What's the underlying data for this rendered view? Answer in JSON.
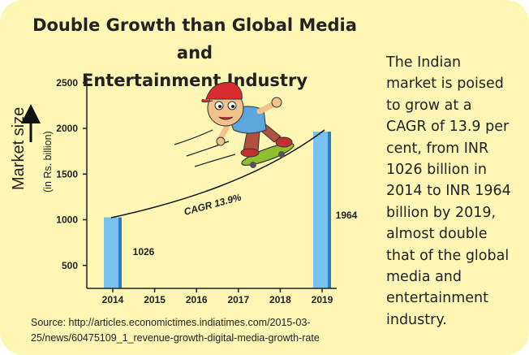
{
  "colors": {
    "background": "#fdf6b4",
    "bar": "#79c1ee",
    "bar_dark": "#2f79c5"
  },
  "header": {
    "title_line1": "Double Growth than Global Media and",
    "title_line2": "Entertainment Industry"
  },
  "description": [
    "The Indian",
    "market is poised",
    "to grow at a",
    "CAGR of 13.9 per",
    "cent, from INR",
    "1026 billion in",
    "2014 to INR 1964",
    "billion by 2019,",
    "almost double",
    "that of the global",
    "media and",
    "entertainment",
    "industry."
  ],
  "source": [
    "Source: http://articles.economictimes.indiatimes.com/2015-03-",
    "25/news/60475109_1_revenue-growth-digital-media-growth-rate"
  ],
  "chart_data": {
    "type": "bar",
    "categories": [
      "2014",
      "2015",
      "2016",
      "2017",
      "2018",
      "2019"
    ],
    "values": [
      1026,
      null,
      null,
      null,
      null,
      1964
    ],
    "data_labels": [
      "1026",
      "",
      "",
      "",
      "",
      "1964"
    ],
    "ylabel": "Market size",
    "ylabel_sub": "(in Rs. billion)",
    "yticks": [
      500,
      1000,
      1500,
      2000,
      2500
    ],
    "ylim": [
      250,
      2600
    ],
    "annotation": "CAGR 13.9%",
    "grid": false,
    "legend": "none"
  },
  "illustration": {
    "name": "skateboarding-boy-illustration"
  }
}
